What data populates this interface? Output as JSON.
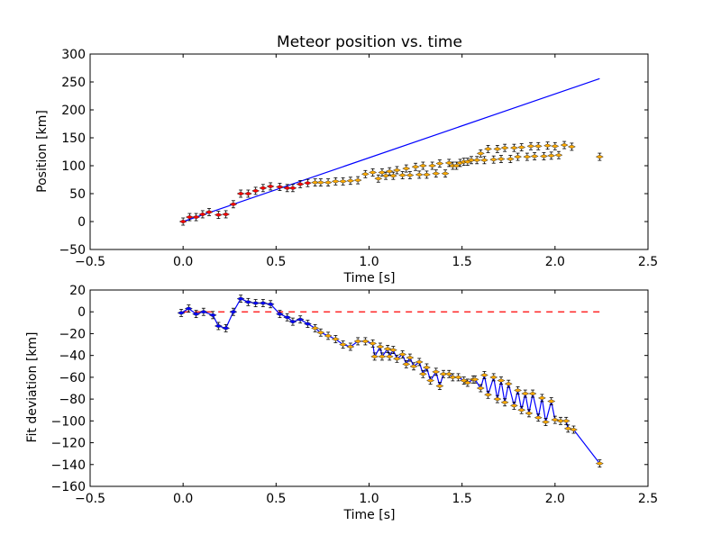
{
  "chart_data": [
    {
      "type": "scatter",
      "title": "Meteor position vs. time",
      "xlabel": "Time [s]",
      "ylabel": "Position [km]",
      "xlim": [
        -0.5,
        2.5
      ],
      "ylim": [
        -50,
        300
      ],
      "xticks": [
        "−0.5",
        "0.0",
        "0.5",
        "1.0",
        "1.5",
        "2.0",
        "2.5"
      ],
      "yticks": [
        "−50",
        "0",
        "50",
        "100",
        "150",
        "200",
        "250",
        "300"
      ],
      "grid": false,
      "colors": {
        "red": "#ff0000",
        "orange": "#ffaa00",
        "fit": "#0000ff"
      },
      "fit_line": {
        "x": [
          0.0,
          2.24
        ],
        "y": [
          0,
          256
        ]
      },
      "series": [
        {
          "color": "red",
          "points": [
            [
              0.0,
              0
            ],
            [
              0.035,
              8
            ],
            [
              0.07,
              8
            ],
            [
              0.105,
              13
            ],
            [
              0.14,
              17
            ],
            [
              0.19,
              12
            ],
            [
              0.23,
              13
            ],
            [
              0.27,
              31
            ],
            [
              0.31,
              50
            ],
            [
              0.35,
              50
            ],
            [
              0.39,
              55
            ],
            [
              0.43,
              60
            ],
            [
              0.47,
              63
            ],
            [
              0.52,
              62
            ],
            [
              0.56,
              60
            ],
            [
              0.59,
              60
            ],
            [
              0.63,
              67
            ],
            [
              0.67,
              69
            ]
          ]
        },
        {
          "color": "orange",
          "points": [
            [
              0.71,
              70
            ],
            [
              0.74,
              70
            ],
            [
              0.78,
              70
            ],
            [
              0.82,
              72
            ],
            [
              0.86,
              72
            ],
            [
              0.9,
              73
            ],
            [
              0.94,
              74
            ],
            [
              0.98,
              85
            ],
            [
              1.02,
              88
            ],
            [
              1.05,
              77
            ],
            [
              1.07,
              88
            ],
            [
              1.09,
              82
            ],
            [
              1.11,
              90
            ],
            [
              1.13,
              82
            ],
            [
              1.15,
              92
            ],
            [
              1.18,
              83
            ],
            [
              1.2,
              95
            ],
            [
              1.22,
              83
            ],
            [
              1.25,
              98
            ],
            [
              1.27,
              84
            ],
            [
              1.29,
              100
            ],
            [
              1.31,
              84
            ],
            [
              1.34,
              100
            ],
            [
              1.36,
              86
            ],
            [
              1.38,
              104
            ],
            [
              1.41,
              86
            ],
            [
              1.43,
              105
            ],
            [
              1.45,
              100
            ],
            [
              1.47,
              100
            ],
            [
              1.49,
              105
            ],
            [
              1.51,
              107
            ],
            [
              1.53,
              107
            ],
            [
              1.55,
              110
            ],
            [
              1.58,
              110
            ],
            [
              1.6,
              122
            ],
            [
              1.62,
              110
            ],
            [
              1.64,
              130
            ],
            [
              1.67,
              111
            ],
            [
              1.69,
              130
            ],
            [
              1.71,
              112
            ],
            [
              1.73,
              132
            ],
            [
              1.76,
              112
            ],
            [
              1.78,
              132
            ],
            [
              1.8,
              116
            ],
            [
              1.82,
              133
            ],
            [
              1.85,
              116
            ],
            [
              1.87,
              135
            ],
            [
              1.89,
              117
            ],
            [
              1.91,
              135
            ],
            [
              1.94,
              117
            ],
            [
              1.96,
              136
            ],
            [
              1.98,
              118
            ],
            [
              2.0,
              135
            ],
            [
              2.02,
              119
            ],
            [
              2.05,
              137
            ],
            [
              2.09,
              134
            ],
            [
              2.24,
              116
            ]
          ]
        }
      ]
    },
    {
      "type": "line",
      "xlabel": "Time [s]",
      "ylabel": "Fit deviation [km]",
      "xlim": [
        -0.5,
        2.5
      ],
      "ylim": [
        -160,
        20
      ],
      "xticks": [
        "−0.5",
        "0.0",
        "0.5",
        "1.0",
        "1.5",
        "2.0",
        "2.5"
      ],
      "yticks": [
        "−160",
        "−140",
        "−120",
        "−100",
        "−80",
        "−60",
        "−40",
        "−20",
        "0",
        "20"
      ],
      "grid": false,
      "zero_line": {
        "x": [
          0.0,
          2.24
        ],
        "y": [
          0,
          0
        ],
        "style": "dashed",
        "color": "#ff0000"
      },
      "line_color": "#0000ff",
      "series": [
        {
          "color": "blue",
          "points": [
            [
              -0.01,
              -1
            ],
            [
              0.03,
              3
            ],
            [
              0.07,
              -2
            ],
            [
              0.11,
              0
            ],
            [
              0.16,
              -3
            ],
            [
              0.19,
              -13
            ],
            [
              0.23,
              -15
            ],
            [
              0.27,
              0
            ],
            [
              0.31,
              12
            ],
            [
              0.35,
              9
            ],
            [
              0.39,
              8
            ],
            [
              0.43,
              8
            ],
            [
              0.47,
              7
            ],
            [
              0.52,
              -2
            ],
            [
              0.56,
              -5
            ],
            [
              0.59,
              -9
            ],
            [
              0.63,
              -7
            ],
            [
              0.67,
              -11
            ]
          ]
        },
        {
          "color": "orange",
          "points": [
            [
              0.71,
              -15
            ],
            [
              0.74,
              -19
            ],
            [
              0.78,
              -22
            ],
            [
              0.82,
              -25
            ],
            [
              0.86,
              -30
            ],
            [
              0.9,
              -32
            ],
            [
              0.94,
              -27
            ],
            [
              0.98,
              -27
            ],
            [
              1.02,
              -29
            ],
            [
              1.03,
              -41
            ],
            [
              1.06,
              -32
            ],
            [
              1.07,
              -41
            ],
            [
              1.1,
              -34
            ],
            [
              1.11,
              -41
            ],
            [
              1.13,
              -35
            ],
            [
              1.15,
              -43
            ],
            [
              1.18,
              -39
            ],
            [
              1.2,
              -48
            ],
            [
              1.22,
              -42
            ],
            [
              1.24,
              -50
            ],
            [
              1.27,
              -46
            ],
            [
              1.29,
              -57
            ],
            [
              1.31,
              -51
            ],
            [
              1.33,
              -63
            ],
            [
              1.36,
              -55
            ],
            [
              1.38,
              -68
            ],
            [
              1.4,
              -57
            ],
            [
              1.43,
              -57
            ],
            [
              1.45,
              -60
            ],
            [
              1.48,
              -60
            ],
            [
              1.51,
              -63
            ],
            [
              1.53,
              -65
            ],
            [
              1.56,
              -62
            ],
            [
              1.57,
              -62
            ],
            [
              1.6,
              -70
            ],
            [
              1.62,
              -58
            ],
            [
              1.64,
              -76
            ],
            [
              1.67,
              -60
            ],
            [
              1.69,
              -80
            ],
            [
              1.71,
              -63
            ],
            [
              1.73,
              -83
            ],
            [
              1.75,
              -66
            ],
            [
              1.78,
              -86
            ],
            [
              1.8,
              -72
            ],
            [
              1.82,
              -90
            ],
            [
              1.84,
              -75
            ],
            [
              1.86,
              -93
            ],
            [
              1.88,
              -75
            ],
            [
              1.91,
              -97
            ],
            [
              1.93,
              -79
            ],
            [
              1.95,
              -101
            ],
            [
              1.98,
              -82
            ],
            [
              2.0,
              -99
            ],
            [
              2.03,
              -100
            ],
            [
              2.06,
              -100
            ],
            [
              2.07,
              -107
            ],
            [
              2.1,
              -108
            ],
            [
              2.24,
              -139
            ]
          ]
        }
      ]
    }
  ]
}
